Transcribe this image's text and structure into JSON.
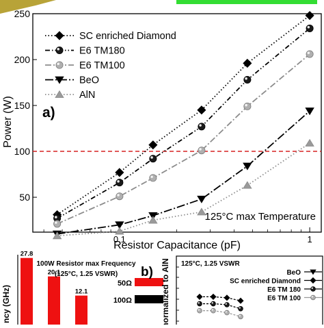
{
  "top_decor": {
    "left_color": "#b8a338",
    "right_color": "#33dd33"
  },
  "chart_data": [
    {
      "type": "line",
      "panel_label": "a)",
      "xlabel": "Resistor Capacitance (pF)",
      "ylabel": "Power (W)",
      "xscale": "log",
      "xlim": [
        0.035,
        1.15
      ],
      "ylim": [
        12,
        250
      ],
      "x_ticks": [
        0.1,
        1
      ],
      "x_tick_labels": [
        "0.1",
        "1"
      ],
      "y_ticks": [
        50,
        100,
        150,
        200,
        250
      ],
      "y_tick_labels": [
        "50",
        "100",
        "150",
        "200",
        "250"
      ],
      "annotation": "125°C max Temperature",
      "reference_line": {
        "y": 100,
        "color": "#d62020",
        "style": "dashed"
      },
      "legend_position": "top-left",
      "series": [
        {
          "name": "SC enriched Diamond",
          "marker": "diamond",
          "dash": "dotted",
          "color": "#000000",
          "x": [
            0.047,
            0.1,
            0.15,
            0.27,
            0.47,
            1.0
          ],
          "y": [
            31,
            77,
            107,
            145,
            196,
            248
          ]
        },
        {
          "name": "E6 TM180",
          "marker": "circle-dark",
          "dash": "dash-dot-dot",
          "color": "#000000",
          "x": [
            0.047,
            0.1,
            0.15,
            0.27,
            0.47,
            1.0
          ],
          "y": [
            27,
            66,
            92,
            127,
            178,
            234
          ]
        },
        {
          "name": "E6 TM100",
          "marker": "circle-light",
          "dash": "dash-dot",
          "color": "#8c8c8c",
          "x": [
            0.047,
            0.1,
            0.15,
            0.27,
            0.47,
            1.0
          ],
          "y": [
            21,
            51,
            71,
            101,
            149,
            206
          ]
        },
        {
          "name": "BeO",
          "marker": "triangle-down",
          "dash": "long-dash-dot",
          "color": "#000000",
          "x": [
            0.047,
            0.1,
            0.15,
            0.27,
            0.47,
            1.0
          ],
          "y": [
            10,
            20,
            30,
            48,
            84,
            144
          ]
        },
        {
          "name": "AlN",
          "marker": "triangle-up",
          "dash": "dotted",
          "color": "#8c8c8c",
          "x": [
            0.047,
            0.1,
            0.15,
            0.27,
            0.47,
            1.0
          ],
          "y": [
            8,
            13,
            25,
            34,
            63,
            109
          ]
        }
      ]
    },
    {
      "type": "bar",
      "title_line1": "100W Resistor max Frequency",
      "title_line2": "(125°C, 1.25 VSWR)",
      "ylabel_fragment": "ncy (GHz)",
      "bars": [
        {
          "value": 27.8,
          "label": "27.8",
          "color": "#ee1111"
        },
        {
          "value": 20.1,
          "label": "20.1",
          "color": "#ee1111"
        },
        {
          "value": 12.1,
          "label": "12.1",
          "color": "#ee1111"
        }
      ],
      "legend": [
        {
          "name": "50Ω",
          "color": "#ee1111"
        },
        {
          "name": "100Ω",
          "color": "#000000"
        }
      ]
    },
    {
      "type": "line",
      "panel_label": "b)",
      "title": "125°C, 1.25 VSWR",
      "ylabel_fragment": "normalized to AlN",
      "legend_position": "top-right",
      "series": [
        {
          "name": "BeO",
          "marker": "triangle-down",
          "color": "#000000",
          "x": [
            1,
            2,
            3,
            4
          ],
          "y": [
            6.0,
            6.0,
            6.0,
            6.0
          ]
        },
        {
          "name": "SC enriched Diamond",
          "marker": "diamond",
          "color": "#000000",
          "x": [
            1,
            2,
            3,
            4
          ],
          "y": [
            5.6,
            5.6,
            5.5,
            5.2
          ]
        },
        {
          "name": "E6 TM 180",
          "marker": "circle-dark",
          "color": "#000000",
          "x": [
            1,
            2,
            3,
            4
          ],
          "y": [
            4.9,
            4.9,
            4.8,
            4.4
          ]
        },
        {
          "name": "E6 TM 100",
          "marker": "circle-light",
          "color": "#9a9a9a",
          "x": [
            1,
            2,
            3,
            4
          ],
          "y": [
            4.2,
            4.2,
            4.0,
            3.6
          ]
        }
      ]
    }
  ]
}
